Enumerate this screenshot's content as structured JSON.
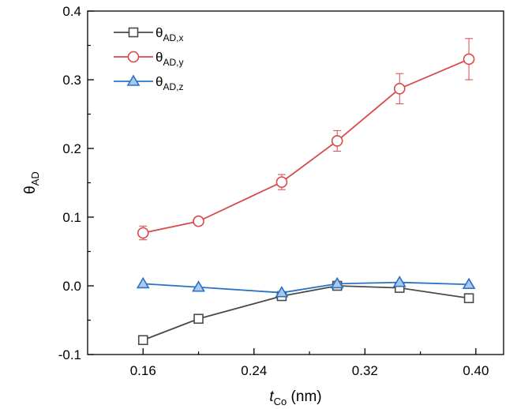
{
  "chart_data": {
    "type": "line",
    "xlabel": {
      "italic": "t",
      "sub": "Co",
      "rest": " (nm)"
    },
    "ylabel": {
      "main": "θ",
      "sub": "AD"
    },
    "xlim": [
      0.12,
      0.42
    ],
    "ylim": [
      -0.1,
      0.4
    ],
    "xticks": [
      {
        "value": 0.16,
        "label": "0.16"
      },
      {
        "value": 0.24,
        "label": "0.24"
      },
      {
        "value": 0.32,
        "label": "0.32"
      },
      {
        "value": 0.4,
        "label": "0.40"
      }
    ],
    "yticks": [
      {
        "value": -0.1,
        "label": "-0.1"
      },
      {
        "value": 0.0,
        "label": "0.0"
      },
      {
        "value": 0.1,
        "label": "0.1"
      },
      {
        "value": 0.2,
        "label": "0.2"
      },
      {
        "value": 0.3,
        "label": "0.3"
      },
      {
        "value": 0.4,
        "label": "0.4"
      }
    ],
    "grid": false,
    "legend_position": "top-left",
    "series": [
      {
        "name": "θAD,x",
        "legend_main": "θ",
        "legend_sub": "AD,x",
        "marker": "square",
        "color": "#4a4a4a",
        "x": [
          0.16,
          0.2,
          0.26,
          0.3,
          0.345,
          0.395
        ],
        "y": [
          -0.079,
          -0.048,
          -0.015,
          0.0,
          -0.003,
          -0.018
        ]
      },
      {
        "name": "θAD,y",
        "legend_main": "θ",
        "legend_sub": "AD,y",
        "marker": "circle",
        "color": "#d9484a",
        "x": [
          0.16,
          0.2,
          0.26,
          0.3,
          0.345,
          0.395
        ],
        "y": [
          0.077,
          0.094,
          0.151,
          0.211,
          0.287,
          0.33
        ],
        "error": [
          0.01,
          0.004,
          0.011,
          0.015,
          0.022,
          0.03
        ]
      },
      {
        "name": "θAD,z",
        "legend_main": "θ",
        "legend_sub": "AD,z",
        "marker": "triangle",
        "color": "#2a72c4",
        "x": [
          0.16,
          0.2,
          0.26,
          0.3,
          0.345,
          0.395
        ],
        "y": [
          0.003,
          -0.002,
          -0.01,
          0.003,
          0.005,
          0.002
        ]
      }
    ]
  }
}
